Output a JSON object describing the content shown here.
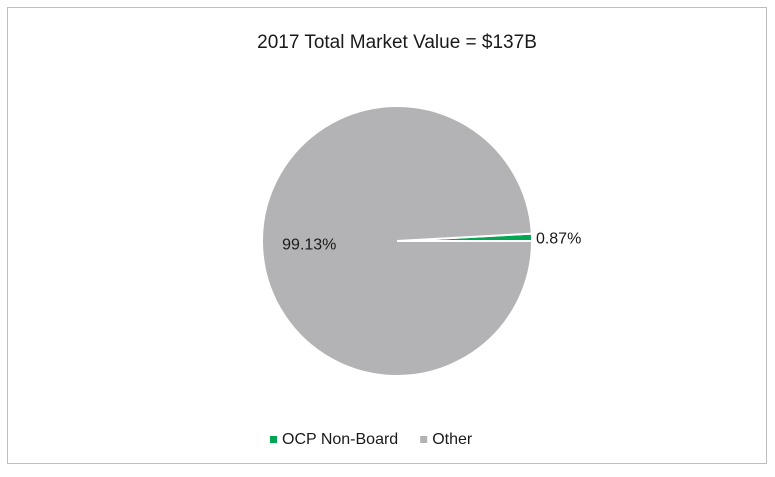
{
  "chart_data": {
    "type": "pie",
    "title": "2017 Total Market Value =  $137B",
    "categories": [
      "OCP Non-Board",
      "Other"
    ],
    "values": [
      0.87,
      99.13
    ],
    "value_labels": [
      "0.87%",
      "99.13%"
    ],
    "colors": [
      "#00a651",
      "#b3b3b5"
    ],
    "legend": "bottom"
  }
}
